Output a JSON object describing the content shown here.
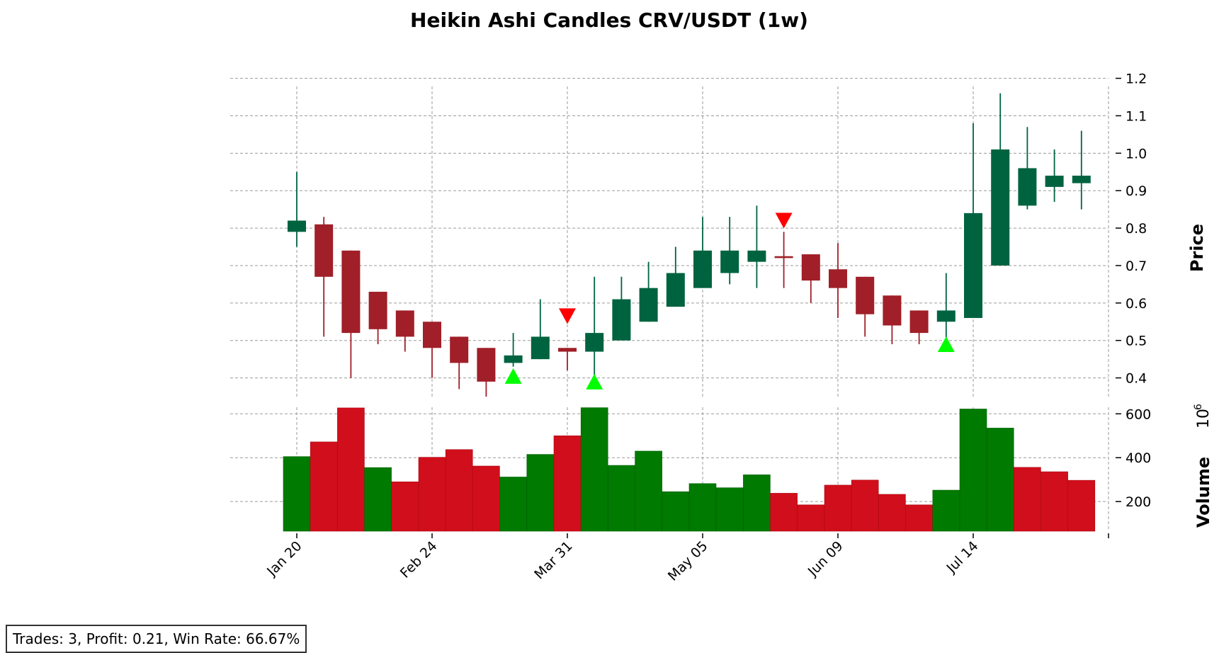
{
  "chart_data": {
    "type": "candlestick",
    "title": "Heikin Ashi Candles CRV/USDT (1w)",
    "price_axis_label": "Price",
    "volume_axis_label": "Volume",
    "volume_multiplier_label": "10",
    "volume_multiplier_exp": "6",
    "price_ylim": [
      0.35,
      1.22
    ],
    "price_ticks": [
      0.4,
      0.5,
      0.6,
      0.7,
      0.8,
      0.9,
      1.0,
      1.1,
      1.2
    ],
    "price_tick_labels": [
      "0.4",
      "0.5",
      "0.6",
      "0.7",
      "0.8",
      "0.9",
      "1.0",
      "1.1",
      "1.2"
    ],
    "volume_ylim": [
      65,
      630
    ],
    "volume_ticks": [
      200,
      400,
      600
    ],
    "volume_tick_labels": [
      "200",
      "400",
      "600"
    ],
    "x_tick_indices": [
      0,
      5,
      10,
      15,
      20,
      25
    ],
    "x_tick_labels": [
      "Jan 20",
      "Feb 24",
      "Mar 31",
      "May 05",
      "Jun 09",
      "Jul 14"
    ],
    "grid": true,
    "colors": {
      "up_candle": "#006340",
      "down_candle": "#a01f28",
      "up_volume": "#007a00",
      "down_volume": "#d10e1b",
      "buy_marker": "#00ff00",
      "sell_marker": "#ff0000"
    },
    "candles": [
      {
        "open": 0.79,
        "high": 0.95,
        "low": 0.75,
        "close": 0.82,
        "dir": "up"
      },
      {
        "open": 0.81,
        "high": 0.83,
        "low": 0.51,
        "close": 0.67,
        "dir": "down"
      },
      {
        "open": 0.74,
        "high": 0.74,
        "low": 0.4,
        "close": 0.52,
        "dir": "down"
      },
      {
        "open": 0.63,
        "high": 0.63,
        "low": 0.49,
        "close": 0.53,
        "dir": "down"
      },
      {
        "open": 0.58,
        "high": 0.58,
        "low": 0.47,
        "close": 0.51,
        "dir": "down"
      },
      {
        "open": 0.55,
        "high": 0.55,
        "low": 0.4,
        "close": 0.48,
        "dir": "down"
      },
      {
        "open": 0.51,
        "high": 0.51,
        "low": 0.37,
        "close": 0.44,
        "dir": "down"
      },
      {
        "open": 0.48,
        "high": 0.48,
        "low": 0.35,
        "close": 0.39,
        "dir": "down"
      },
      {
        "open": 0.44,
        "high": 0.52,
        "low": 0.43,
        "close": 0.46,
        "dir": "up"
      },
      {
        "open": 0.45,
        "high": 0.61,
        "low": 0.45,
        "close": 0.51,
        "dir": "up"
      },
      {
        "open": 0.48,
        "high": 0.48,
        "low": 0.42,
        "close": 0.47,
        "dir": "down"
      },
      {
        "open": 0.47,
        "high": 0.67,
        "low": 0.4,
        "close": 0.52,
        "dir": "up"
      },
      {
        "open": 0.5,
        "high": 0.67,
        "low": 0.5,
        "close": 0.61,
        "dir": "up"
      },
      {
        "open": 0.55,
        "high": 0.71,
        "low": 0.55,
        "close": 0.64,
        "dir": "up"
      },
      {
        "open": 0.59,
        "high": 0.75,
        "low": 0.59,
        "close": 0.68,
        "dir": "up"
      },
      {
        "open": 0.64,
        "high": 0.83,
        "low": 0.64,
        "close": 0.74,
        "dir": "up"
      },
      {
        "open": 0.68,
        "high": 0.83,
        "low": 0.65,
        "close": 0.74,
        "dir": "up"
      },
      {
        "open": 0.71,
        "high": 0.86,
        "low": 0.64,
        "close": 0.74,
        "dir": "up"
      },
      {
        "open": 0.725,
        "high": 0.79,
        "low": 0.64,
        "close": 0.72,
        "dir": "down"
      },
      {
        "open": 0.73,
        "high": 0.73,
        "low": 0.6,
        "close": 0.66,
        "dir": "down"
      },
      {
        "open": 0.69,
        "high": 0.76,
        "low": 0.56,
        "close": 0.64,
        "dir": "down"
      },
      {
        "open": 0.67,
        "high": 0.67,
        "low": 0.51,
        "close": 0.57,
        "dir": "down"
      },
      {
        "open": 0.62,
        "high": 0.62,
        "low": 0.49,
        "close": 0.54,
        "dir": "down"
      },
      {
        "open": 0.58,
        "high": 0.58,
        "low": 0.49,
        "close": 0.52,
        "dir": "down"
      },
      {
        "open": 0.55,
        "high": 0.68,
        "low": 0.5,
        "close": 0.58,
        "dir": "up"
      },
      {
        "open": 0.56,
        "high": 1.08,
        "low": 0.56,
        "close": 0.84,
        "dir": "up"
      },
      {
        "open": 0.7,
        "high": 1.16,
        "low": 0.7,
        "close": 1.01,
        "dir": "up"
      },
      {
        "open": 0.86,
        "high": 1.07,
        "low": 0.85,
        "close": 0.96,
        "dir": "up"
      },
      {
        "open": 0.91,
        "high": 1.01,
        "low": 0.87,
        "close": 0.94,
        "dir": "up"
      },
      {
        "open": 0.92,
        "high": 1.06,
        "low": 0.85,
        "close": 0.94,
        "dir": "up"
      }
    ],
    "volume": [
      {
        "value": 405,
        "dir": "up"
      },
      {
        "value": 472,
        "dir": "down"
      },
      {
        "value": 627,
        "dir": "down"
      },
      {
        "value": 355,
        "dir": "up"
      },
      {
        "value": 290,
        "dir": "down"
      },
      {
        "value": 402,
        "dir": "down"
      },
      {
        "value": 437,
        "dir": "down"
      },
      {
        "value": 362,
        "dir": "down"
      },
      {
        "value": 312,
        "dir": "up"
      },
      {
        "value": 415,
        "dir": "up"
      },
      {
        "value": 500,
        "dir": "down"
      },
      {
        "value": 628,
        "dir": "up"
      },
      {
        "value": 365,
        "dir": "up"
      },
      {
        "value": 430,
        "dir": "up"
      },
      {
        "value": 245,
        "dir": "up"
      },
      {
        "value": 282,
        "dir": "up"
      },
      {
        "value": 263,
        "dir": "up"
      },
      {
        "value": 322,
        "dir": "up"
      },
      {
        "value": 238,
        "dir": "down"
      },
      {
        "value": 185,
        "dir": "down"
      },
      {
        "value": 275,
        "dir": "down"
      },
      {
        "value": 298,
        "dir": "down"
      },
      {
        "value": 233,
        "dir": "down"
      },
      {
        "value": 185,
        "dir": "down"
      },
      {
        "value": 252,
        "dir": "up"
      },
      {
        "value": 622,
        "dir": "up"
      },
      {
        "value": 535,
        "dir": "up"
      },
      {
        "value": 356,
        "dir": "down"
      },
      {
        "value": 336,
        "dir": "down"
      },
      {
        "value": 297,
        "dir": "down"
      }
    ],
    "buy_markers": [
      {
        "index": 8,
        "price": 0.405
      },
      {
        "index": 11,
        "price": 0.39
      },
      {
        "index": 24,
        "price": 0.49
      }
    ],
    "sell_markers": [
      {
        "index": 10,
        "price": 0.565
      },
      {
        "index": 18,
        "price": 0.82
      }
    ]
  },
  "stats": {
    "text": "Trades: 3, Profit: 0.21, Win Rate: 66.67%"
  }
}
